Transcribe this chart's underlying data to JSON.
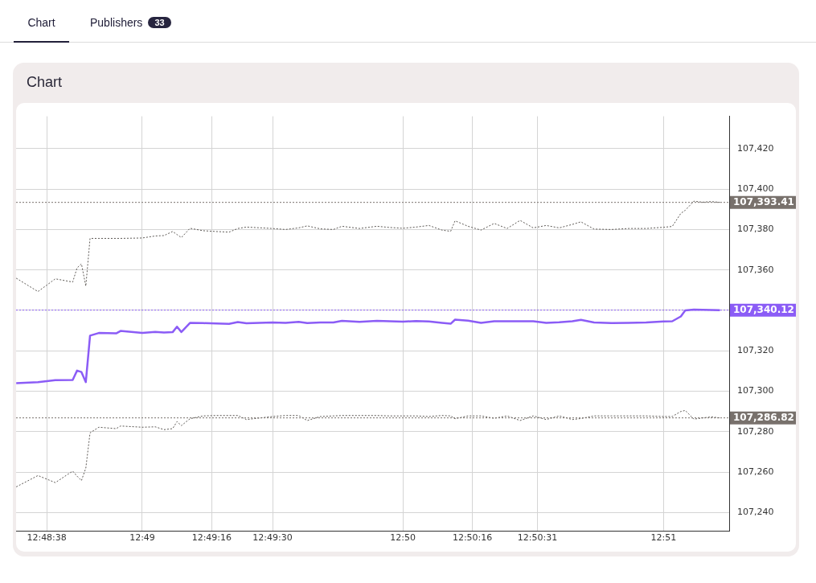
{
  "chart_data": {
    "type": "line",
    "title": "Chart",
    "annotations": [
      "Chart",
      "Publishers",
      "33"
    ],
    "x": [
      12.80861,
      12.81,
      12.81111,
      12.81222,
      12.8125,
      12.81278,
      12.81306,
      12.81333,
      12.81389,
      12.815,
      12.81528,
      12.81667,
      12.8175,
      12.81806,
      12.81861,
      12.81889,
      12.81917,
      12.81972,
      12.82056,
      12.82139,
      12.82222,
      12.82278,
      12.82333,
      12.825,
      12.82583,
      12.82667,
      12.82722,
      12.82806,
      12.82889,
      12.82944,
      12.83056,
      12.83167,
      12.8325,
      12.83333,
      12.83417,
      12.835,
      12.83583,
      12.83639,
      12.83667,
      12.8375,
      12.83833,
      12.83917,
      12.84,
      12.84083,
      12.84167,
      12.8425,
      12.84333,
      12.84417,
      12.84472,
      12.84556,
      12.84667,
      12.84778,
      12.84889,
      12.85,
      12.85056,
      12.85111,
      12.85139,
      12.85194,
      12.8525,
      12.85306,
      12.85361
    ],
    "series": [
      {
        "color": "#5c5854",
        "line_style": "dotted",
        "values": [
          107355.9,
          107349.3,
          107355.6,
          107354,
          107361,
          107363,
          107352,
          107375.6,
          107375.6,
          107375.6,
          107375.6,
          107375.8,
          107376.8,
          107377,
          107379,
          107377.5,
          107376,
          107380.6,
          107379.4,
          107379,
          107378.7,
          107380.5,
          107381.2,
          107380.5,
          107380,
          107380.8,
          107381.8,
          107380.3,
          107380,
          107381.6,
          107380.5,
          107381.6,
          107381,
          107380.6,
          107381.2,
          107382,
          107379.7,
          107379.1,
          107384.3,
          107381.6,
          107379.7,
          107383,
          107380.5,
          107384.5,
          107380.8,
          107382,
          107380.8,
          107382.5,
          107383.8,
          107380.2,
          107380,
          107380.5,
          107380.5,
          107381.1,
          107381.5,
          107388,
          107389.5,
          107394,
          107393.5,
          107393.8,
          107393.4
        ]
      },
      {
        "color": "#8b5cf6",
        "line_style": "solid",
        "values": [
          107304,
          107304.5,
          107305.5,
          107305.6,
          107310.2,
          107309.5,
          107304.5,
          107327.5,
          107328.8,
          107328.6,
          107329.8,
          107328.8,
          107329.3,
          107329,
          107329.2,
          107331.9,
          107329.3,
          107333.8,
          107333.7,
          107333.5,
          107333.3,
          107334.2,
          107333.6,
          107334,
          107333.8,
          107334.3,
          107333.7,
          107334,
          107334,
          107334.8,
          107334.3,
          107334.8,
          107334.6,
          107334.4,
          107334.7,
          107334.5,
          107333.8,
          107333.4,
          107335.4,
          107334.9,
          107333.8,
          107334.6,
          107334.6,
          107334.6,
          107334.6,
          107333.8,
          107334.1,
          107334.6,
          107335.3,
          107334,
          107333.7,
          107333.8,
          107334,
          107334.5,
          107334.6,
          107337,
          107340,
          107340.4,
          107340.3,
          107340.2,
          107340.1
        ]
      },
      {
        "color": "#5c5854",
        "line_style": "dotted",
        "values": [
          107252.7,
          107258.3,
          107254.8,
          107260.5,
          107258,
          107255.8,
          107262,
          107279.4,
          107282.2,
          107281.5,
          107282.8,
          107282.2,
          107282.4,
          107281,
          107281.5,
          107285,
          107283,
          107286.4,
          107287.8,
          107288,
          107288,
          107288,
          107286,
          107287.5,
          107288,
          107288,
          107285.5,
          107287.5,
          107287.8,
          107288,
          107288,
          107288,
          107287.8,
          107287.8,
          107287.8,
          107287.5,
          107288,
          107287.8,
          107286.4,
          107287.8,
          107287.8,
          107286.6,
          107287.8,
          107285.5,
          107287.8,
          107286,
          107287.8,
          107286,
          107286.5,
          107287.8,
          107287.8,
          107287.8,
          107287.8,
          107287.5,
          107287.5,
          107290,
          107290.5,
          107286.2,
          107286.8,
          107287.3,
          107286.8
        ]
      }
    ],
    "xlim": [
      12.8086,
      12.8542
    ],
    "xticks": [
      {
        "value": 12.81056,
        "label": "12:48:38"
      },
      {
        "value": 12.81667,
        "label": "12:49"
      },
      {
        "value": 12.82111,
        "label": "12:49:16"
      },
      {
        "value": 12.825,
        "label": "12:49:30"
      },
      {
        "value": 12.83333,
        "label": "12:50"
      },
      {
        "value": 12.83778,
        "label": "12:50:16"
      },
      {
        "value": 12.84194,
        "label": "12:50:31"
      },
      {
        "value": 12.85,
        "label": "12:51"
      }
    ],
    "ylim": [
      107231,
      107436
    ],
    "yticks": [
      {
        "value": 107240,
        "label": "107,240"
      },
      {
        "value": 107260,
        "label": "107,260"
      },
      {
        "value": 107280,
        "label": "107,280"
      },
      {
        "value": 107300,
        "label": "107,300"
      },
      {
        "value": 107320,
        "label": "107,320"
      },
      {
        "value": 107340,
        "label": null
      },
      {
        "value": 107360,
        "label": "107,360"
      },
      {
        "value": 107380,
        "label": "107,380"
      },
      {
        "value": 107400,
        "label": "107,400"
      },
      {
        "value": 107420,
        "label": "107,420"
      }
    ],
    "ref_lines": [
      {
        "axis": "y",
        "value": 107393.41,
        "label": "107,393.41",
        "color": "#78716c",
        "line_style": "dotted"
      },
      {
        "axis": "y",
        "value": 107340.12,
        "label": "107,340.12",
        "color": "#8b5cf6",
        "line_style": "dotted"
      },
      {
        "axis": "y",
        "value": 107286.82,
        "label": "107,286.82",
        "color": "#78716c",
        "line_style": "dotted"
      }
    ],
    "grid": true,
    "legend": false,
    "marker": "none"
  }
}
